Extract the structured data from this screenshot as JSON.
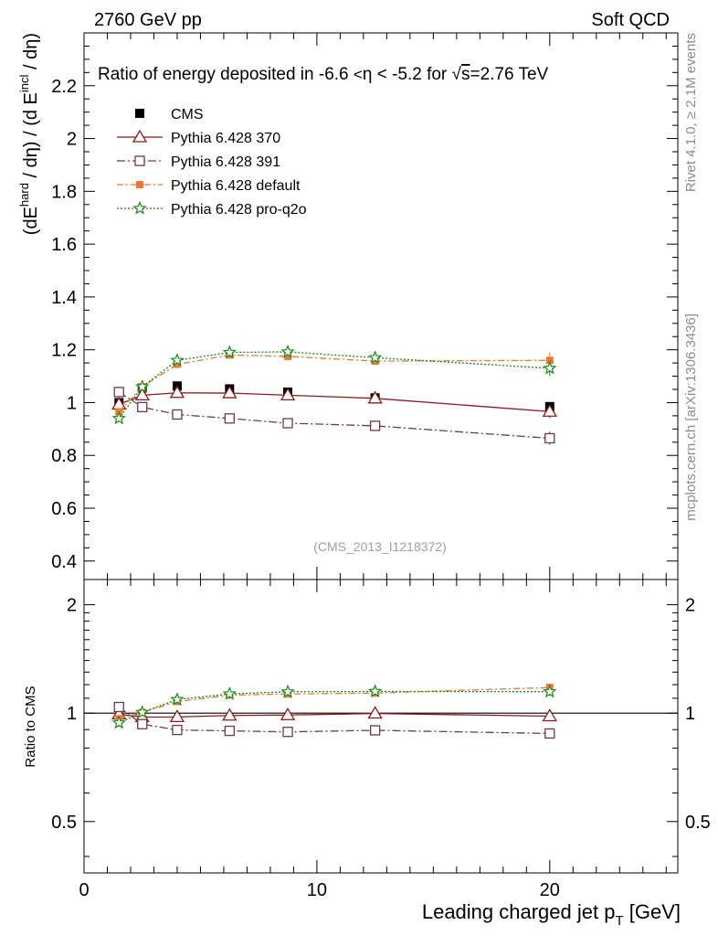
{
  "header": {
    "left_label": "2760 GeV pp",
    "right_label": "Soft QCD"
  },
  "side_labels": {
    "rivet": "Rivet 4.1.0, ≥ 2.1M events",
    "mcplots": "mcplots.cern.ch [arXiv:1306.3436]"
  },
  "chart_data": [
    {
      "id": "main",
      "type": "line",
      "title_prefix": "Ratio of energy deposited in -6.6 ",
      "title_eta": "η < -5.2 for ",
      "title_sqrt": "s",
      "title_suffix": "=2.76 TeV",
      "watermark": "(CMS_2013_I1218372)",
      "ylabel": "(dE^hard / dη) / (d E^incl / dη)",
      "ylabel_parts": {
        "p1": "(dE",
        "sup1": "hard",
        "p2": " / dη) / (d E",
        "sup2": "incl",
        "p3": " / dη)"
      },
      "xlim": [
        0,
        25.5
      ],
      "ylim": [
        0.33,
        2.4
      ],
      "yticks": [
        0.4,
        0.6,
        0.8,
        1.0,
        1.2,
        1.4,
        1.6,
        1.8,
        2.0,
        2.2
      ],
      "ytick_labels": [
        "0.4",
        "0.6",
        "0.8",
        "1",
        "1.2",
        "1.4",
        "1.6",
        "1.8",
        "2",
        "2.2"
      ],
      "series": [
        {
          "name": "CMS",
          "style": "data",
          "color": "#000000",
          "x": [
            1.5,
            2.5,
            4.0,
            6.25,
            8.75,
            12.5,
            20.0
          ],
          "y": [
            1.0,
            1.055,
            1.063,
            1.052,
            1.04,
            1.018,
            0.985
          ],
          "err": [
            0.012,
            0.012,
            0.012,
            0.012,
            0.012,
            0.015,
            0.015
          ]
        },
        {
          "name": "Pythia 6.428 370",
          "style": "triangle",
          "color": "#8b1a1a",
          "x": [
            1.5,
            2.5,
            4.0,
            6.25,
            8.75,
            12.5,
            20.0
          ],
          "y": [
            0.993,
            1.028,
            1.037,
            1.036,
            1.028,
            1.016,
            0.966
          ],
          "err": [
            0.008,
            0.008,
            0.008,
            0.008,
            0.008,
            0.01,
            0.025
          ]
        },
        {
          "name": "Pythia 6.428 391",
          "style": "square-open",
          "color": "#6e3a4a",
          "x": [
            1.5,
            2.5,
            4.0,
            6.25,
            8.75,
            12.5,
            20.0
          ],
          "y": [
            1.04,
            0.983,
            0.955,
            0.94,
            0.922,
            0.912,
            0.865
          ],
          "err": [
            0.008,
            0.008,
            0.008,
            0.008,
            0.008,
            0.01,
            0.025
          ]
        },
        {
          "name": "Pythia 6.428 default",
          "style": "square-filled",
          "color": "#f07830",
          "x": [
            1.5,
            2.5,
            4.0,
            6.25,
            8.75,
            12.5,
            20.0
          ],
          "y": [
            0.965,
            1.06,
            1.145,
            1.18,
            1.175,
            1.157,
            1.16
          ],
          "err": [
            0.008,
            0.008,
            0.008,
            0.008,
            0.008,
            0.01,
            0.03
          ]
        },
        {
          "name": "Pythia 6.428 pro-q2o",
          "style": "star",
          "color": "#1a8a1a",
          "x": [
            1.5,
            2.5,
            4.0,
            6.25,
            8.75,
            12.5,
            20.0
          ],
          "y": [
            0.94,
            1.06,
            1.16,
            1.19,
            1.192,
            1.17,
            1.13
          ],
          "err": [
            0.008,
            0.008,
            0.008,
            0.008,
            0.008,
            0.01,
            0.03
          ]
        }
      ]
    },
    {
      "id": "ratio",
      "type": "line",
      "ylabel": "Ratio to CMS",
      "xlabel_prefix": "Leading charged jet p",
      "xlabel_sub": "T",
      "xlabel_suffix": " [GeV]",
      "xlim": [
        0,
        25.5
      ],
      "ylim": [
        0.36,
        2.35
      ],
      "yscale": "log",
      "yticks": [
        0.5,
        1,
        2
      ],
      "ytick_labels": [
        "0.5",
        "1",
        "2"
      ],
      "xticks": [
        0,
        10,
        20
      ],
      "xtick_labels": [
        "0",
        "10",
        "20"
      ],
      "series": [
        {
          "name": "Pythia 6.428 370",
          "style": "triangle",
          "color": "#8b1a1a",
          "x": [
            1.5,
            2.5,
            4.0,
            6.25,
            8.75,
            12.5,
            20.0
          ],
          "y": [
            0.993,
            0.975,
            0.976,
            0.985,
            0.988,
            0.998,
            0.981
          ],
          "err": [
            0.01,
            0.01,
            0.01,
            0.01,
            0.01,
            0.012,
            0.025
          ]
        },
        {
          "name": "Pythia 6.428 391",
          "style": "square-open",
          "color": "#6e3a4a",
          "x": [
            1.5,
            2.5,
            4.0,
            6.25,
            8.75,
            12.5,
            20.0
          ],
          "y": [
            1.04,
            0.932,
            0.898,
            0.893,
            0.887,
            0.896,
            0.878
          ],
          "err": [
            0.01,
            0.01,
            0.01,
            0.01,
            0.01,
            0.012,
            0.025
          ]
        },
        {
          "name": "Pythia 6.428 default",
          "style": "square-filled",
          "color": "#f07830",
          "x": [
            1.5,
            2.5,
            4.0,
            6.25,
            8.75,
            12.5,
            20.0
          ],
          "y": [
            0.965,
            1.005,
            1.077,
            1.122,
            1.13,
            1.137,
            1.178
          ],
          "err": [
            0.01,
            0.01,
            0.01,
            0.01,
            0.01,
            0.012,
            0.03
          ]
        },
        {
          "name": "Pythia 6.428 pro-q2o",
          "style": "star",
          "color": "#1a8a1a",
          "x": [
            1.5,
            2.5,
            4.0,
            6.25,
            8.75,
            12.5,
            20.0
          ],
          "y": [
            0.94,
            1.005,
            1.091,
            1.131,
            1.146,
            1.149,
            1.147
          ],
          "err": [
            0.01,
            0.01,
            0.01,
            0.01,
            0.01,
            0.012,
            0.03
          ]
        }
      ]
    }
  ]
}
